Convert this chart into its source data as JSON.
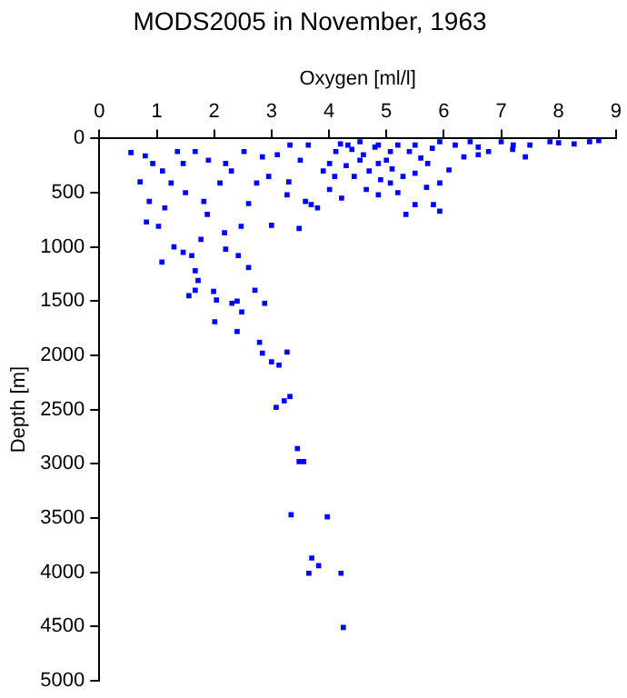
{
  "chart_data": {
    "type": "scatter",
    "title": "MODS2005 in November, 1963",
    "xlabel": "Oxygen [ml/l]",
    "ylabel": "Depth [m]",
    "xlim": [
      0,
      9
    ],
    "xticks": [
      0,
      1,
      2,
      3,
      4,
      5,
      6,
      7,
      8,
      9
    ],
    "ylim": [
      5000,
      0
    ],
    "yticks": [
      0,
      500,
      1000,
      1500,
      2000,
      2500,
      3000,
      3500,
      4000,
      4500,
      5000
    ],
    "grid": false,
    "legend": false,
    "marker": "square",
    "series": [
      {
        "color": "#0000ff",
        "x": [
          0.55,
          0.8,
          0.93,
          0.71,
          0.87,
          0.82,
          1.03,
          1.09,
          1.3,
          1.46,
          1.67,
          1.72,
          1.56,
          1.67,
          1.99,
          2.04,
          2.31,
          2.4,
          2.01,
          2.71,
          2.88,
          2.6,
          2.42,
          2.2,
          2.47,
          2.18,
          1.88,
          1.82,
          2.1,
          2.2,
          2.52,
          2.74,
          3.0,
          3.48,
          3.27,
          3.59,
          3.8,
          3.32,
          3.64,
          4.01,
          4.33,
          4.54,
          4.86,
          5.07,
          5.29,
          5.34,
          5.5,
          5.82,
          5.93,
          6.09,
          6.35,
          6.78,
          7.21,
          7.42,
          7.85,
          8.27,
          8.7,
          8.54,
          7.0,
          6.46,
          5.93,
          5.5,
          4.44,
          4.65,
          4.86,
          4.01,
          4.22,
          3.69,
          2.84,
          2.95,
          1.67,
          1.46,
          1.25,
          1.14,
          1.77,
          1.61,
          1.36,
          5.93,
          4.86,
          4.12,
          5.72,
          5.07,
          4.54,
          2.4,
          2.48,
          2.79,
          2.84,
          3.0,
          3.13,
          3.27,
          3.22,
          3.08,
          3.32,
          3.45,
          3.48,
          3.56,
          3.34,
          3.97,
          3.7,
          3.82,
          3.65,
          4.21,
          4.25,
          4.2,
          4.4,
          4.6,
          4.8,
          5.0,
          5.2,
          5.4,
          5.6,
          5.8,
          6.2,
          6.6,
          7.5,
          8.0,
          4.3,
          4.7,
          5.1,
          5.5,
          4.1,
          3.9,
          3.5,
          3.1,
          2.3,
          1.1,
          1.9,
          1.5,
          2.6,
          3.3,
          6.6,
          7.2,
          5.7,
          5.2,
          4.9
        ],
        "values": [
          130,
          160,
          230,
          400,
          580,
          770,
          810,
          1140,
          1000,
          1050,
          1220,
          1310,
          1450,
          1400,
          1410,
          1490,
          1520,
          1500,
          1690,
          1400,
          1520,
          1190,
          1080,
          1020,
          810,
          870,
          700,
          580,
          410,
          230,
          120,
          410,
          800,
          830,
          520,
          580,
          640,
          60,
          60,
          230,
          60,
          30,
          60,
          120,
          350,
          700,
          610,
          610,
          670,
          290,
          170,
          120,
          60,
          170,
          30,
          50,
          20,
          30,
          30,
          30,
          30,
          60,
          350,
          470,
          520,
          470,
          550,
          610,
          170,
          350,
          120,
          230,
          410,
          640,
          930,
          1080,
          120,
          410,
          230,
          120,
          230,
          410,
          200,
          1780,
          1600,
          1880,
          1980,
          2060,
          2090,
          1970,
          2420,
          2480,
          2380,
          2860,
          2980,
          2980,
          3470,
          3490,
          3870,
          3940,
          4010,
          4010,
          4510,
          50,
          100,
          150,
          80,
          200,
          60,
          120,
          180,
          90,
          60,
          80,
          60,
          40,
          250,
          300,
          280,
          320,
          350,
          300,
          200,
          150,
          300,
          300,
          200,
          500,
          600,
          400,
          150,
          100,
          450,
          500,
          380
        ]
      }
    ]
  }
}
